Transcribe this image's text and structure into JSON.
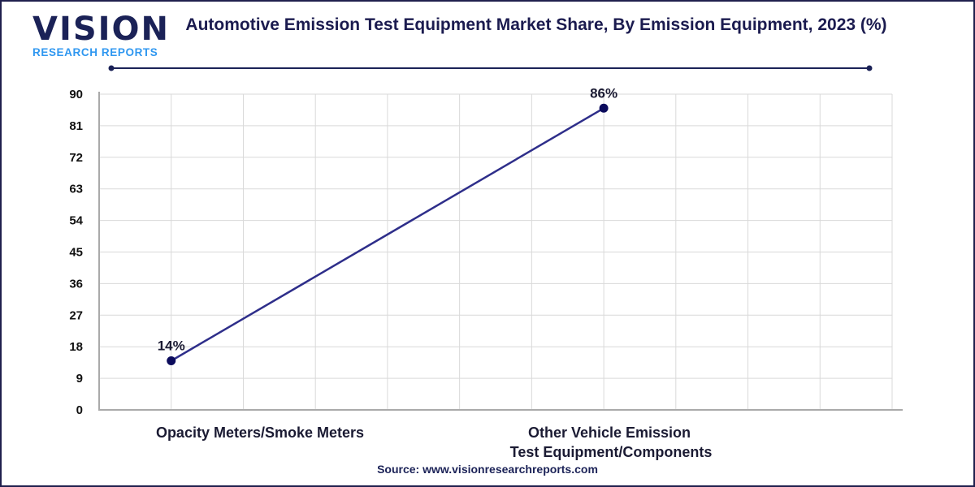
{
  "logo": {
    "main": "VISION",
    "sub": "RESEARCH REPORTS"
  },
  "colors": {
    "line": "#2e2e8a",
    "marker": "#0b0b5c",
    "title": "#1b1b4f",
    "logo_blue": "#2f97f0",
    "grid": "#d9d9d9"
  },
  "source": "Source: www.visionresearchreports.com",
  "chart_data": {
    "type": "line",
    "title": "Automotive Emission Test Equipment Market Share, By Emission Equipment, 2023 (%)",
    "categories": [
      "Opacity Meters/Smoke Meters",
      "Other Vehicle Emission Test Equipment/Components"
    ],
    "category_lines": [
      [
        "Opacity Meters/Smoke Meters"
      ],
      [
        "Other Vehicle Emission",
        "Test Equipment/Components"
      ]
    ],
    "values": [
      14,
      86
    ],
    "data_labels": [
      "14%",
      "86%"
    ],
    "ylim": [
      0,
      90
    ],
    "yticks": [
      0,
      9,
      18,
      27,
      36,
      45,
      54,
      63,
      72,
      81,
      90
    ],
    "xlabel": "",
    "ylabel": "",
    "grid": true,
    "legend": "none"
  }
}
